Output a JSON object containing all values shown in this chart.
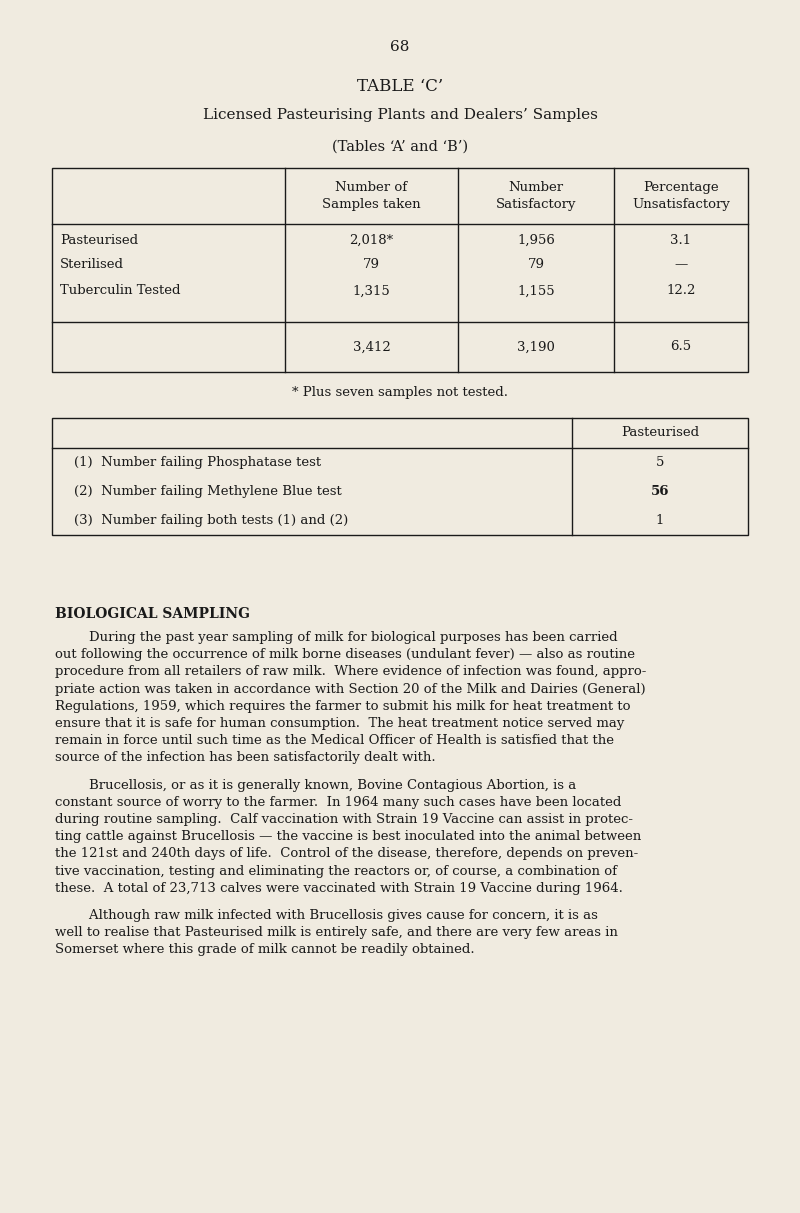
{
  "bg_color": "#f0ebe0",
  "text_color": "#1a1a1a",
  "page_number": "68",
  "title1": "TABLE ‘C’",
  "title2": "Licensed Pasteurising Plants and Dealers’ Samples",
  "title3": "(Tables ‘A’ and ‘B’)",
  "table1_headers": [
    "",
    "Number of\nSamples taken",
    "Number\nSatisfactory",
    "Percentage\nUnsatisfactory"
  ],
  "table1_rows": [
    [
      "Pasteurised",
      "2,018*",
      "1,956",
      "3.1"
    ],
    [
      "Sterilised",
      "79",
      "79",
      "—"
    ],
    [
      "Tuberculin Tested",
      "1,315",
      "1,155",
      "12.2"
    ],
    [
      "",
      "3,412",
      "3,190",
      "6.5"
    ]
  ],
  "footnote": "* Plus seven samples not tested.",
  "table2_header": "Pasteurised",
  "table2_rows": [
    [
      "(1)  Number failing Phosphatase test",
      "5"
    ],
    [
      "(2)  Number failing Methylene Blue test",
      "56"
    ],
    [
      "(3)  Number failing both tests (1) and (2)",
      "1"
    ]
  ],
  "bio_heading": "BIOLOGICAL SAMPLING",
  "para1_lines": [
    "        During the past year sampling of milk for biological purposes has been carried",
    "out following the occurrence of milk borne diseases (undulant fever) — also as routine",
    "procedure from all retailers of raw milk.  Where evidence of infection was found, appro-",
    "priate action was taken in accordance with Section 20 of the Milk and Dairies (General)",
    "Regulations, 1959, which requires the farmer to submit his milk for heat treatment to",
    "ensure that it is safe for human consumption.  The heat treatment notice served may",
    "remain in force until such time as the Medical Officer of Health is satisfied that the",
    "source of the infection has been satisfactorily dealt with."
  ],
  "para2_lines": [
    "        Brucellosis, or as it is generally known, Bovine Contagious Abortion, is a",
    "constant source of worry to the farmer.  In 1964 many such cases have been located",
    "during routine sampling.  Calf vaccination with Strain 19 Vaccine can assist in protec-",
    "ting cattle against Brucellosis — the vaccine is best inoculated into the animal between",
    "the 121st and 240th days of life.  Control of the disease, therefore, depends on preven-",
    "tive vaccination, testing and eliminating the reactors or, of course, a combination of",
    "these.  A total of 23,713 calves were vaccinated with Strain 19 Vaccine during 1964."
  ],
  "para3_lines": [
    "        Although raw milk infected with Brucellosis gives cause for concern, it is as",
    "well to realise that Pasteurised milk is entirely safe, and there are very few areas in",
    "Somerset where this grade of milk cannot be readily obtained."
  ]
}
